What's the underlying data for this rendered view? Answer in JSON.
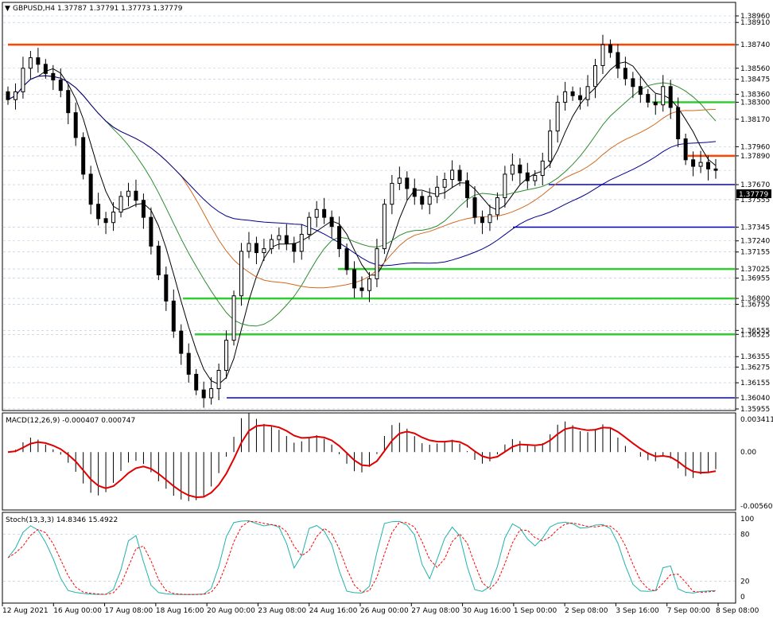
{
  "header": {
    "symbol_info": "GBPUSD,H4  1.37787 1.37791 1.37773 1.37779",
    "macd_info": "MACD(12,26,9) -0.000407 0.000747",
    "stoch_info": "Stoch(13,3,3) 14.8346 15.4922"
  },
  "price_axis": {
    "labels": [
      "1.38960",
      "1.38910",
      "1.38740",
      "1.38560",
      "1.38475",
      "1.38360",
      "1.38300",
      "1.38170",
      "1.37960",
      "1.37890",
      "1.37779",
      "1.37670",
      "1.37555",
      "1.37345",
      "1.37240",
      "1.37155",
      "1.37025",
      "1.36955",
      "1.36800",
      "1.36755",
      "1.36555",
      "1.36525",
      "1.36355",
      "1.36275",
      "1.36155",
      "1.36040",
      "1.35955"
    ],
    "current": "1.37779"
  },
  "macd_axis": {
    "labels": [
      "0.003411",
      "0.00",
      "-0.005606"
    ]
  },
  "stoch_axis": {
    "labels": [
      "100",
      "80",
      "20",
      "0"
    ]
  },
  "time_axis": {
    "labels": [
      "12 Aug 2021",
      "16 Aug 00:00",
      "17 Aug 08:00",
      "18 Aug 16:00",
      "20 Aug 00:00",
      "23 Aug 08:00",
      "24 Aug 16:00",
      "26 Aug 00:00",
      "27 Aug 08:00",
      "30 Aug 16:00",
      "1 Sep 00:00",
      "2 Sep 08:00",
      "3 Sep 16:00",
      "7 Sep 00:00",
      "8 Sep 08:00"
    ]
  },
  "colors": {
    "candle": "#000000",
    "level_orange": "#ff4500",
    "level_green": "#32cd32",
    "level_blue": "#0000cd",
    "ma_blue": "#00008b",
    "ma_red": "#d2691e",
    "ma_green": "#2e8b2e",
    "ma_black": "#000000",
    "macd_signal": "#e00000",
    "stoch_main": "#20b2aa",
    "stoch_signal": "#ff0000",
    "grid": "#b0c4de",
    "price_tag_bg": "#000000"
  },
  "chart_data": {
    "type": "candlestick",
    "symbol": "GBPUSD",
    "timeframe": "H4",
    "last_price": 1.37779,
    "horizontal_levels": [
      {
        "price": 1.3874,
        "color": "orange"
      },
      {
        "price": 1.383,
        "color": "green"
      },
      {
        "price": 1.3789,
        "color": "orange"
      },
      {
        "price": 1.3767,
        "color": "blue"
      },
      {
        "price": 1.37345,
        "color": "blue"
      },
      {
        "price": 1.37025,
        "color": "green"
      },
      {
        "price": 1.368,
        "color": "green"
      },
      {
        "price": 1.36525,
        "color": "green"
      },
      {
        "price": 1.3604,
        "color": "blue"
      }
    ],
    "close_path": [
      1.3832,
      1.3838,
      1.3856,
      1.3864,
      1.3859,
      1.3852,
      1.3847,
      1.3839,
      1.3822,
      1.3803,
      1.3775,
      1.3752,
      1.3741,
      1.3738,
      1.3746,
      1.3758,
      1.3762,
      1.3755,
      1.3742,
      1.372,
      1.3698,
      1.3678,
      1.3655,
      1.3638,
      1.3622,
      1.361,
      1.3604,
      1.3611,
      1.3625,
      1.3648,
      1.3682,
      1.3716,
      1.3722,
      1.3715,
      1.3718,
      1.3725,
      1.3728,
      1.3722,
      1.3716,
      1.3729,
      1.3742,
      1.3748,
      1.3742,
      1.3735,
      1.3718,
      1.3702,
      1.3688,
      1.3686,
      1.3695,
      1.3718,
      1.3752,
      1.3768,
      1.3772,
      1.3764,
      1.3758,
      1.3752,
      1.3758,
      1.3765,
      1.3771,
      1.3778,
      1.377,
      1.3757,
      1.3742,
      1.3738,
      1.3744,
      1.3757,
      1.3775,
      1.3782,
      1.3776,
      1.377,
      1.3774,
      1.3785,
      1.3808,
      1.383,
      1.3838,
      1.3835,
      1.3832,
      1.3842,
      1.3858,
      1.3874,
      1.3868,
      1.3856,
      1.3848,
      1.3842,
      1.3836,
      1.383,
      1.3828,
      1.3842,
      1.3826,
      1.3802,
      1.3786,
      1.3781,
      1.3784,
      1.3779,
      1.37779
    ],
    "macd": {
      "range": [
        -0.005606,
        0.003411
      ]
    },
    "stochastic": {
      "range": [
        0,
        100
      ],
      "levels": [
        20,
        80
      ],
      "main": 14.8346,
      "signal": 15.4922
    }
  }
}
